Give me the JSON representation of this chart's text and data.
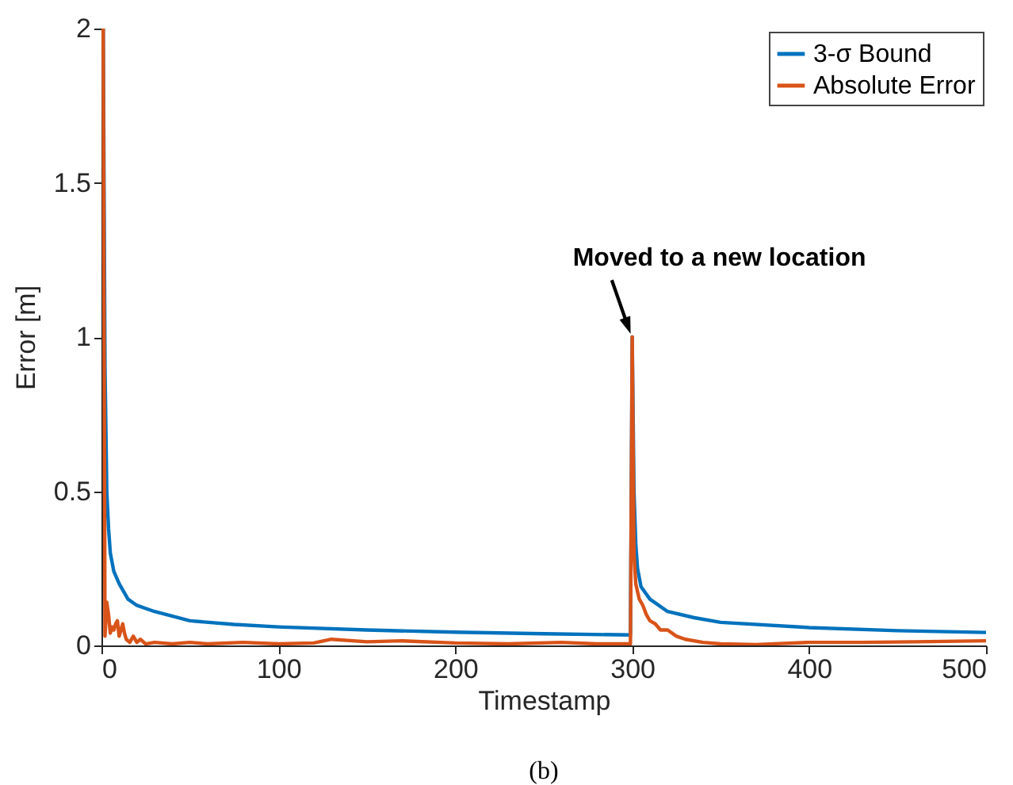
{
  "chart_data": {
    "type": "line",
    "xlabel": "Timestamp",
    "ylabel": "Error [m]",
    "xlim": [
      0,
      500
    ],
    "ylim": [
      0,
      2
    ],
    "xticks": [
      0,
      100,
      200,
      300,
      400,
      500
    ],
    "yticks": [
      0,
      0.5,
      1,
      1.5,
      2
    ],
    "grid": false,
    "legend": "top right",
    "line_style": "solid",
    "annotations": [
      {
        "text": "Moved to a new location",
        "x": 300,
        "y": 1
      },
      "(b)"
    ],
    "series": [
      {
        "name": "3-σ Bound",
        "color": "#0072bd",
        "x": [
          1,
          2,
          3,
          4,
          5,
          7,
          10,
          15,
          20,
          30,
          50,
          75,
          100,
          150,
          200,
          250,
          299,
          300,
          301,
          302,
          303,
          305,
          310,
          320,
          335,
          350,
          400,
          450,
          500
        ],
        "values": [
          2,
          0.9,
          0.5,
          0.38,
          0.3,
          0.24,
          0.2,
          0.15,
          0.13,
          0.11,
          0.08,
          0.068,
          0.06,
          0.05,
          0.043,
          0.038,
          0.034,
          1,
          0.5,
          0.33,
          0.25,
          0.19,
          0.15,
          0.11,
          0.09,
          0.075,
          0.058,
          0.048,
          0.042
        ]
      },
      {
        "name": "Absolute Error",
        "color": "#d95319",
        "x": [
          0,
          1,
          2,
          3,
          4,
          5,
          6,
          7,
          8,
          9,
          10,
          11,
          12,
          13,
          14,
          16,
          18,
          20,
          22,
          25,
          30,
          40,
          50,
          60,
          80,
          100,
          120,
          130,
          150,
          170,
          200,
          230,
          260,
          280,
          299,
          300,
          301,
          302,
          304,
          306,
          308,
          310,
          313,
          316,
          320,
          325,
          330,
          340,
          350,
          370,
          400,
          430,
          460,
          500
        ],
        "values": [
          2,
          2,
          0.03,
          0.14,
          0.1,
          0.04,
          0.06,
          0.05,
          0.07,
          0.08,
          0.03,
          0.05,
          0.07,
          0.04,
          0.02,
          0.01,
          0.03,
          0.01,
          0.02,
          0.005,
          0.01,
          0.005,
          0.01,
          0.005,
          0.01,
          0.005,
          0.008,
          0.02,
          0.012,
          0.015,
          0.008,
          0.005,
          0.01,
          0.005,
          0.005,
          1,
          0.3,
          0.2,
          0.15,
          0.13,
          0.1,
          0.08,
          0.07,
          0.05,
          0.05,
          0.03,
          0.02,
          0.01,
          0.005,
          0.003,
          0.01,
          0.01,
          0.012,
          0.015
        ]
      }
    ]
  }
}
